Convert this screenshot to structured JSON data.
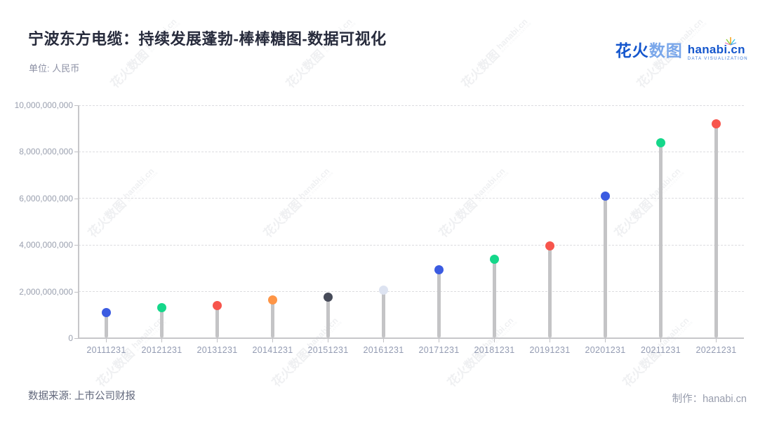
{
  "title": "宁波东方电缆：持续发展蓬勃-棒棒糖图-数据可视化",
  "unit_label": "单位: 人民币",
  "logo": {
    "brand_cn_primary": "花火",
    "brand_cn_secondary": "数图",
    "brand_en": "hanabi.cn",
    "brand_sub": "DATA VISUALIZATION"
  },
  "watermark": {
    "text_cn": "花火数图",
    "text_en": "hanabi.cn",
    "text_sub": "DATA VISUALIZATION"
  },
  "footer": {
    "source": "数据来源: 上市公司财报",
    "credit": "制作：hanabi.cn"
  },
  "chart_data": {
    "type": "scatter",
    "variant": "lollipop",
    "title": "宁波东方电缆：持续发展蓬勃-棒棒糖图-数据可视化",
    "xlabel": "",
    "ylabel": "单位: 人民币",
    "categories": [
      "20111231",
      "20121231",
      "20131231",
      "20141231",
      "20151231",
      "20161231",
      "20171231",
      "20181231",
      "20191231",
      "20201231",
      "20211231",
      "20221231"
    ],
    "values": [
      1100000000,
      1300000000,
      1400000000,
      1630000000,
      1750000000,
      2060000000,
      2950000000,
      3400000000,
      3950000000,
      6100000000,
      8400000000,
      9200000000
    ],
    "point_colors": [
      "#3b5be1",
      "#15d78a",
      "#f7554c",
      "#fe9546",
      "#474b59",
      "#dde3f1",
      "#3b5be1",
      "#15d78a",
      "#f7554c",
      "#3b5be1",
      "#15d78a",
      "#f7554c"
    ],
    "stem_color": "#c4c4c6",
    "ylim": [
      0,
      10000000000
    ],
    "yticks": [
      0,
      2000000000,
      4000000000,
      6000000000,
      8000000000,
      10000000000
    ],
    "ytick_labels": [
      "0",
      "2,000,000,000",
      "4,000,000,000",
      "6,000,000,000",
      "8,000,000,000",
      "10,000,000,000"
    ],
    "grid": "horizontal dashed",
    "legend": "none"
  },
  "colors": {
    "accent_blue": "#3b5be1",
    "accent_green": "#15d78a",
    "accent_red": "#f7554c",
    "accent_orange": "#fe9546",
    "accent_dark": "#474b59",
    "accent_lavender": "#dde3f1",
    "brand_blue": "#1456cd",
    "axis_gray": "#c7c7ca",
    "grid_gray": "#dcdce0"
  }
}
